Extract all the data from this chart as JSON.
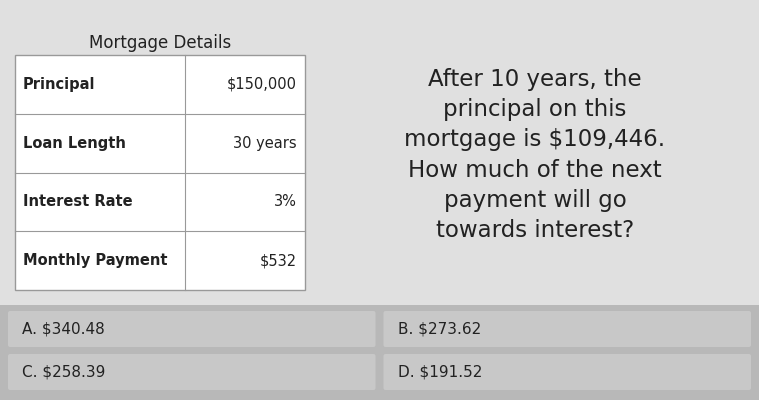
{
  "bg_color": "#b8b8b8",
  "table_title": "Mortgage Details",
  "table_rows": [
    [
      "Principal",
      "$150,000"
    ],
    [
      "Loan Length",
      "30 years"
    ],
    [
      "Interest Rate",
      "3%"
    ],
    [
      "Monthly Payment",
      "$532"
    ]
  ],
  "question_text": "After 10 years, the\nprincipal on this\nmortgage is $109,446.\nHow much of the next\npayment will go\ntowards interest?",
  "choices": [
    [
      "A. $340.48",
      "B. $273.62"
    ],
    [
      "C. $258.39",
      "D. $191.52"
    ]
  ],
  "upper_panel_bg": "#e0e0e0",
  "choice_bg": "#c8c8c8",
  "table_bg": "#ffffff",
  "table_border": "#999999",
  "label_color": "#222222",
  "question_color": "#222222"
}
